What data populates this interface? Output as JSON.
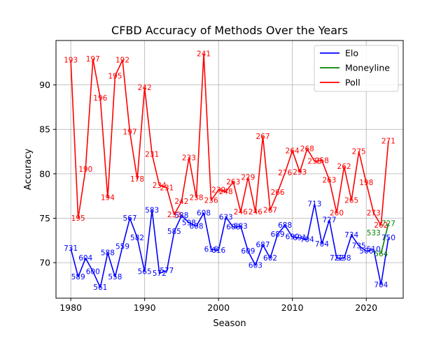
{
  "chart_data": {
    "type": "line",
    "title": "CFBD Accuracy of Methods Over the Years",
    "xlabel": "Season",
    "ylabel": "Accuracy",
    "xlim": [
      1978,
      2025
    ],
    "ylim": [
      66,
      95
    ],
    "xticks": [
      1980,
      1990,
      2000,
      2010,
      2020
    ],
    "yticks": [
      70,
      75,
      80,
      85,
      90
    ],
    "grid": true,
    "legend_position": "top-right",
    "x": [
      1980,
      1981,
      1982,
      1983,
      1984,
      1985,
      1986,
      1987,
      1988,
      1989,
      1990,
      1991,
      1992,
      1993,
      1994,
      1995,
      1996,
      1997,
      1998,
      1999,
      2000,
      2001,
      2002,
      2003,
      2004,
      2005,
      2006,
      2007,
      2008,
      2009,
      2010,
      2011,
      2012,
      2013,
      2014,
      2015,
      2016,
      2017,
      2018,
      2019,
      2020,
      2021,
      2022,
      2023
    ],
    "series": [
      {
        "name": "Elo",
        "color": "#0000ff",
        "values": [
          71.6,
          68.4,
          70.5,
          69.0,
          67.2,
          71.1,
          68.4,
          71.8,
          75.0,
          72.8,
          69.0,
          75.9,
          68.8,
          69.1,
          73.5,
          75.3,
          74.5,
          74.1,
          75.6,
          71.5,
          71.4,
          75.1,
          74.0,
          74.1,
          71.3,
          69.7,
          72.0,
          70.5,
          73.2,
          74.2,
          72.9,
          72.8,
          72.6,
          76.6,
          72.1,
          74.8,
          70.5,
          70.5,
          73.1,
          71.9,
          71.3,
          71.5,
          67.5,
          72.8
        ],
        "labels": [
          "731",
          "589",
          "604",
          "600",
          "561",
          "588",
          "558",
          "559",
          "567",
          "582",
          "565",
          "583",
          "572",
          "577",
          "585",
          "588",
          "598",
          "608",
          "608",
          "616",
          "616",
          "633",
          "608",
          "583",
          "609",
          "603",
          "687",
          "602",
          "689",
          "688",
          "690",
          "691",
          "704",
          "713",
          "704",
          "727",
          "722",
          "738",
          "734",
          "735",
          "506",
          "510",
          "704",
          "750"
        ]
      },
      {
        "name": "Moneyline",
        "color": "#008000",
        "values": [
          null,
          null,
          null,
          null,
          null,
          null,
          null,
          null,
          null,
          null,
          null,
          null,
          null,
          null,
          null,
          null,
          null,
          null,
          null,
          null,
          null,
          null,
          null,
          null,
          null,
          null,
          null,
          null,
          null,
          null,
          null,
          null,
          null,
          null,
          null,
          null,
          null,
          null,
          null,
          null,
          null,
          null,
          71.0,
          74.4
        ],
        "labels": [
          null,
          null,
          null,
          null,
          null,
          null,
          null,
          null,
          null,
          null,
          null,
          null,
          null,
          null,
          null,
          null,
          null,
          null,
          null,
          null,
          null,
          null,
          null,
          null,
          null,
          null,
          null,
          null,
          null,
          null,
          null,
          null,
          null,
          null,
          null,
          null,
          null,
          null,
          null,
          null,
          null,
          "533",
          "564",
          "727"
        ]
      },
      {
        "name": "Poll",
        "color": "#ff0000",
        "values": [
          92.8,
          75.0,
          80.5,
          92.9,
          88.5,
          77.3,
          91.0,
          92.8,
          84.7,
          79.4,
          89.7,
          82.2,
          78.7,
          78.4,
          75.4,
          76.9,
          81.8,
          77.3,
          93.5,
          77.0,
          78.2,
          78.0,
          79.1,
          75.7,
          79.6,
          75.7,
          84.2,
          75.9,
          77.9,
          80.1,
          82.6,
          80.2,
          82.8,
          81.4,
          81.5,
          79.3,
          75.6,
          80.8,
          77.0,
          82.5,
          79.0,
          75.6,
          74.2,
          83.7
        ],
        "labels": [
          "193",
          "195",
          "190",
          "197",
          "196",
          "194",
          "195",
          "192",
          "197",
          "178",
          "242",
          "231",
          "234",
          "231",
          "233",
          "242",
          "233",
          "238",
          "241",
          "236",
          "239",
          "248",
          "263",
          "246",
          "229",
          "246",
          "267",
          "267",
          "266",
          "276",
          "264",
          "293",
          "268",
          "238",
          "258",
          "263",
          "260",
          "262",
          "265",
          "275",
          "198",
          "273",
          "262",
          "271"
        ]
      }
    ]
  }
}
